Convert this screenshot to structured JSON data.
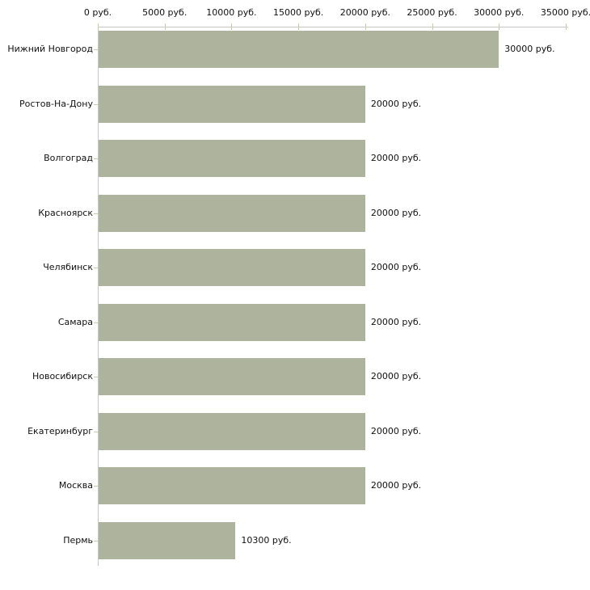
{
  "chart_data": {
    "type": "bar",
    "orientation": "horizontal",
    "title": "",
    "categories": [
      "Нижний Новгород",
      "Ростов-На-Дону",
      "Волгоград",
      "Красноярск",
      "Челябинск",
      "Самара",
      "Новосибирск",
      "Екатеринбург",
      "Москва",
      "Пермь"
    ],
    "values": [
      30000,
      20000,
      20000,
      20000,
      20000,
      20000,
      20000,
      20000,
      20000,
      10300
    ],
    "value_labels": [
      "30000 руб.",
      "20000 руб.",
      "20000 руб.",
      "20000 руб.",
      "20000 руб.",
      "20000 руб.",
      "20000 руб.",
      "20000 руб.",
      "20000 руб.",
      "10300 руб."
    ],
    "unit": "руб.",
    "x_axis": {
      "position": "top",
      "min": 0,
      "max": 35000,
      "tick_step": 5000,
      "tick_labels": [
        "0 руб.",
        "5000 руб.",
        "10000 руб.",
        "15000 руб.",
        "20000 руб.",
        "25000 руб.",
        "30000 руб.",
        "35000 руб."
      ]
    },
    "grid": false,
    "legend": false,
    "colors": {
      "bar": "#adb39c",
      "axis_line": "#c6c6c6",
      "tick": "#c9cda1",
      "text": "#111111",
      "background": "#ffffff"
    }
  }
}
